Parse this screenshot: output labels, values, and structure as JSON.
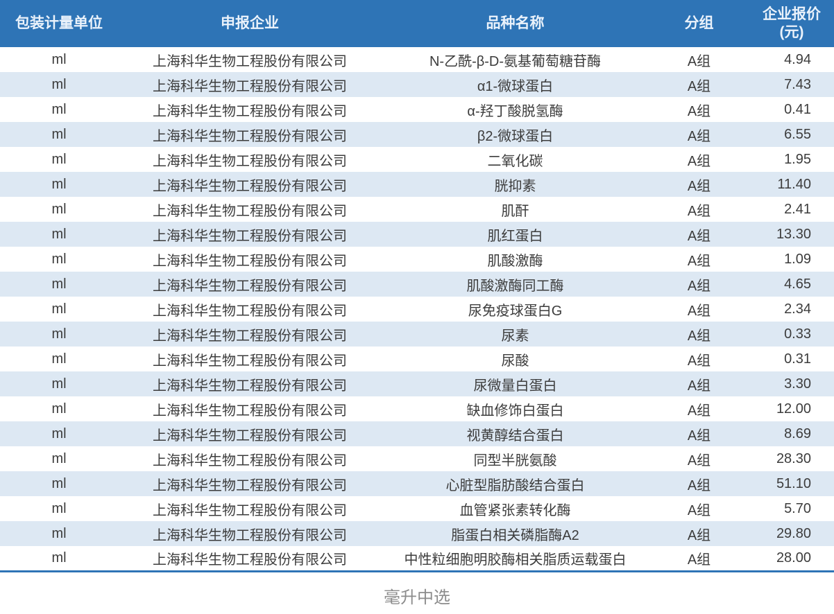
{
  "colors": {
    "header_bg": "#2E74B6",
    "header_text": "#EAF2FB",
    "stripe_bg": "#DDE8F3",
    "body_text": "#3C3C3C",
    "bottom_border": "#2E74B6",
    "caption_text": "#8C8C8C"
  },
  "table": {
    "headers": {
      "unit": "包装计量单位",
      "company": "申报企业",
      "product": "品种名称",
      "group": "分组",
      "price_line1": "企业报价",
      "price_line2": "(元)"
    },
    "rows": [
      {
        "unit": "ml",
        "company": "上海科华生物工程股份有限公司",
        "product": "N-乙酰-β-D-氨基葡萄糖苷酶",
        "group": "A组",
        "price": "4.94"
      },
      {
        "unit": "ml",
        "company": "上海科华生物工程股份有限公司",
        "product": "α1-微球蛋白",
        "group": "A组",
        "price": "7.43"
      },
      {
        "unit": "ml",
        "company": "上海科华生物工程股份有限公司",
        "product": "α-羟丁酸脱氢酶",
        "group": "A组",
        "price": "0.41"
      },
      {
        "unit": "ml",
        "company": "上海科华生物工程股份有限公司",
        "product": "β2-微球蛋白",
        "group": "A组",
        "price": "6.55"
      },
      {
        "unit": "ml",
        "company": "上海科华生物工程股份有限公司",
        "product": "二氧化碳",
        "group": "A组",
        "price": "1.95"
      },
      {
        "unit": "ml",
        "company": "上海科华生物工程股份有限公司",
        "product": "胱抑素",
        "group": "A组",
        "price": "11.40"
      },
      {
        "unit": "ml",
        "company": "上海科华生物工程股份有限公司",
        "product": "肌酐",
        "group": "A组",
        "price": "2.41"
      },
      {
        "unit": "ml",
        "company": "上海科华生物工程股份有限公司",
        "product": "肌红蛋白",
        "group": "A组",
        "price": "13.30"
      },
      {
        "unit": "ml",
        "company": "上海科华生物工程股份有限公司",
        "product": "肌酸激酶",
        "group": "A组",
        "price": "1.09"
      },
      {
        "unit": "ml",
        "company": "上海科华生物工程股份有限公司",
        "product": "肌酸激酶同工酶",
        "group": "A组",
        "price": "4.65"
      },
      {
        "unit": "ml",
        "company": "上海科华生物工程股份有限公司",
        "product": "尿免疫球蛋白G",
        "group": "A组",
        "price": "2.34"
      },
      {
        "unit": "ml",
        "company": "上海科华生物工程股份有限公司",
        "product": "尿素",
        "group": "A组",
        "price": "0.33"
      },
      {
        "unit": "ml",
        "company": "上海科华生物工程股份有限公司",
        "product": "尿酸",
        "group": "A组",
        "price": "0.31"
      },
      {
        "unit": "ml",
        "company": "上海科华生物工程股份有限公司",
        "product": "尿微量白蛋白",
        "group": "A组",
        "price": "3.30"
      },
      {
        "unit": "ml",
        "company": "上海科华生物工程股份有限公司",
        "product": "缺血修饰白蛋白",
        "group": "A组",
        "price": "12.00"
      },
      {
        "unit": "ml",
        "company": "上海科华生物工程股份有限公司",
        "product": "视黄醇结合蛋白",
        "group": "A组",
        "price": "8.69"
      },
      {
        "unit": "ml",
        "company": "上海科华生物工程股份有限公司",
        "product": "同型半胱氨酸",
        "group": "A组",
        "price": "28.30"
      },
      {
        "unit": "ml",
        "company": "上海科华生物工程股份有限公司",
        "product": "心脏型脂肪酸结合蛋白",
        "group": "A组",
        "price": "51.10"
      },
      {
        "unit": "ml",
        "company": "上海科华生物工程股份有限公司",
        "product": "血管紧张素转化酶",
        "group": "A组",
        "price": "5.70"
      },
      {
        "unit": "ml",
        "company": "上海科华生物工程股份有限公司",
        "product": "脂蛋白相关磷脂酶A2",
        "group": "A组",
        "price": "29.80"
      },
      {
        "unit": "ml",
        "company": "上海科华生物工程股份有限公司",
        "product": "中性粒细胞明胶酶相关脂质运载蛋白",
        "group": "A组",
        "price": "28.00"
      }
    ]
  },
  "caption": "毫升中选"
}
